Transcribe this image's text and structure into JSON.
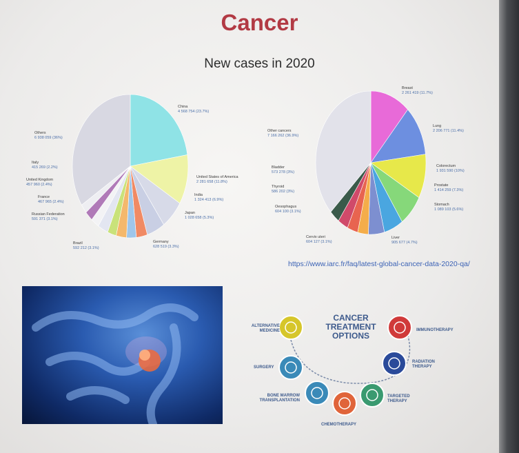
{
  "slide": {
    "title": "Cancer",
    "subtitle": "New cases in 2020",
    "url": "https://www.iarc.fr/faq/latest-global-cancer-data-2020-qa/"
  },
  "chart_data": [
    {
      "type": "pie",
      "title": "",
      "slices": [
        {
          "label": "China",
          "value": 4568754,
          "text": "4 568 754 (23.7%)",
          "color": "#8fe3e6"
        },
        {
          "label": "United States of America",
          "value": 2281658,
          "text": "2 281 658 (11.8%)",
          "color": "#eef3a6"
        },
        {
          "label": "India",
          "value": 1324413,
          "text": "1 324 413 (6.9%)",
          "color": "#d7dae8"
        },
        {
          "label": "Japan",
          "value": 1028658,
          "text": "1 028 658 (5.3%)",
          "color": "#c9cfe4"
        },
        {
          "label": "Germany",
          "value": 628519,
          "text": "628 519 (3.3%)",
          "color": "#f08a64"
        },
        {
          "label": "",
          "value": 550000,
          "color": "#9fc6ea"
        },
        {
          "label": "Brazil",
          "value": 592212,
          "text": "592 212 (3.1%)",
          "color": "#f4b86c"
        },
        {
          "label": "",
          "value": 500000,
          "color": "#c9e27a"
        },
        {
          "label": "Russian Federation",
          "value": 591371,
          "text": "591 371 (3.1%)",
          "color": "#e3e6f1"
        },
        {
          "label": "France",
          "value": 467965,
          "text": "467 965 (2.4%)",
          "color": "#f3f3f5"
        },
        {
          "label": "United Kingdom",
          "value": 457960,
          "text": "457 960 (2.4%)",
          "color": "#b07ab8"
        },
        {
          "label": "Italy",
          "value": 415269,
          "text": "415 269 (2.2%)",
          "color": "#eeeef2"
        },
        {
          "label": "Others",
          "value": 6938059,
          "text": "6 938 059 (36%)",
          "color": "#d8d8e2"
        }
      ]
    },
    {
      "type": "pie",
      "title": "",
      "slices": [
        {
          "label": "Breast",
          "value": 2261419,
          "text": "2 261 419 (11.7%)",
          "color": "#e86ad8"
        },
        {
          "label": "Lung",
          "value": 2206771,
          "text": "2 206 771 (11.4%)",
          "color": "#6d8fe0"
        },
        {
          "label": "Colorectum",
          "value": 1931590,
          "text": "1 931 590 (10%)",
          "color": "#e7e84a"
        },
        {
          "label": "Prostate",
          "value": 1414259,
          "text": "1 414 259 (7.3%)",
          "color": "#86d87a"
        },
        {
          "label": "Stomach",
          "value": 1089103,
          "text": "1 089 103 (5.6%)",
          "color": "#4aa6e0"
        },
        {
          "label": "Liver",
          "value": 905677,
          "text": "905 677 (4.7%)",
          "color": "#7d8fd0"
        },
        {
          "label": "Cervix uteri",
          "value": 604127,
          "text": "604 127 (3.1%)",
          "color": "#f4ad4a"
        },
        {
          "label": "Oesophagus",
          "value": 604100,
          "text": "604 100 (3.1%)",
          "color": "#e86450"
        },
        {
          "label": "Thyroid",
          "value": 586202,
          "text": "586 202 (3%)",
          "color": "#d04a6a"
        },
        {
          "label": "Bladder",
          "value": 573278,
          "text": "573 278 (3%)",
          "color": "#3a5a4a"
        },
        {
          "label": "Other cancers",
          "value": 7166262,
          "text": "7 166 262 (36.9%)",
          "color": "#e2e2ea"
        }
      ]
    }
  ],
  "treatment": {
    "title": "CANCER TREATMENT OPTIONS",
    "items": [
      {
        "label": "ALTERNATIVE MEDICINE",
        "color": "#d6c62a"
      },
      {
        "label": "SURGERY",
        "color": "#3a8ab8"
      },
      {
        "label": "BONE MARROW TRANSPLANTATION",
        "color": "#3a8ab8"
      },
      {
        "label": "CHEMOTHERAPY",
        "color": "#e0643a"
      },
      {
        "label": "TARGETED THERAPY",
        "color": "#3a9a70"
      },
      {
        "label": "RADIATION THERAPY",
        "color": "#2a4a9a"
      },
      {
        "label": "IMMUNOTHERAPY",
        "color": "#d03a3a"
      }
    ]
  }
}
